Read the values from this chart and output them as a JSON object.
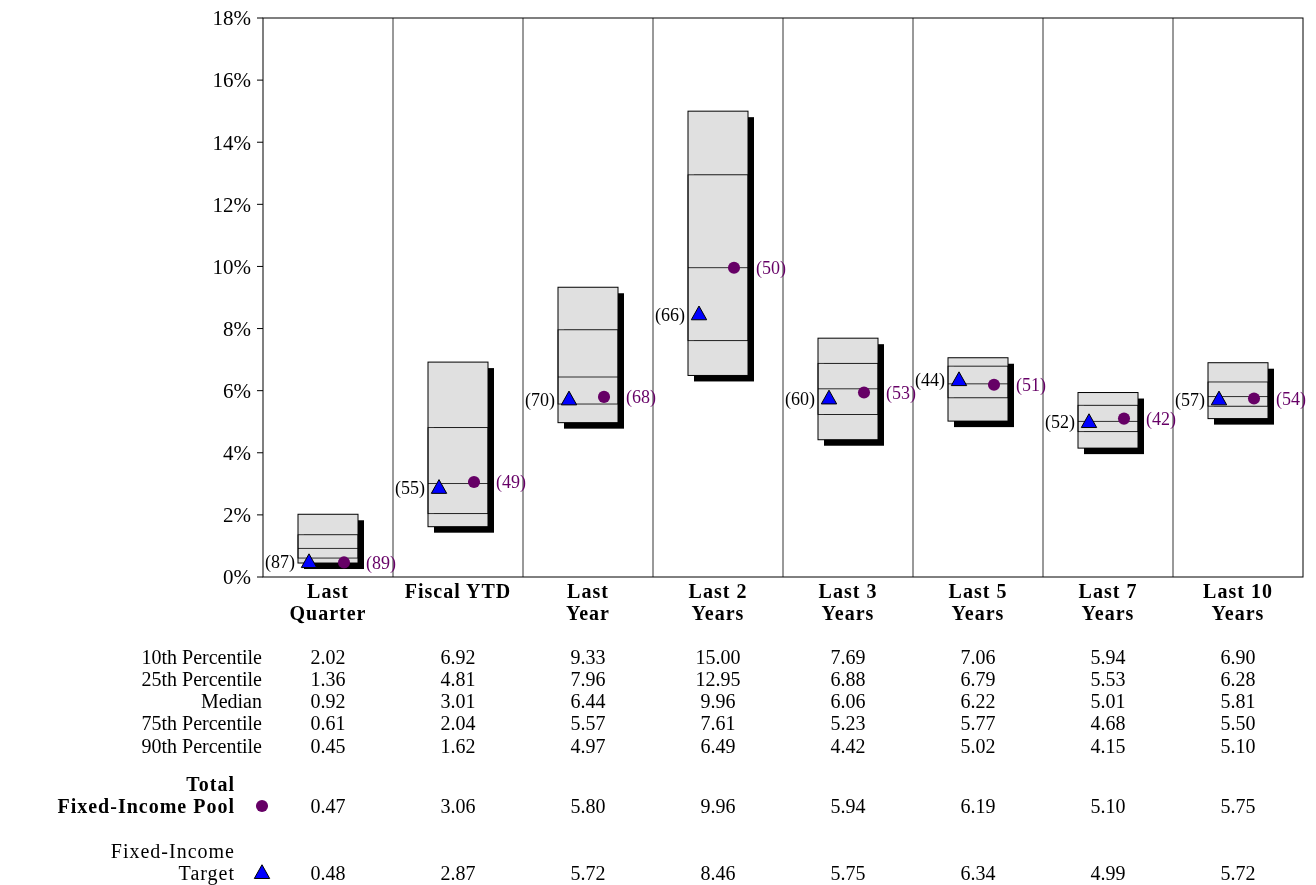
{
  "chart_data": {
    "type": "box",
    "categories": [
      "Last\nQuarter",
      "Fiscal YTD",
      "Last\nYear",
      "Last 2\nYears",
      "Last 3\nYears",
      "Last 5\nYears",
      "Last 7\nYears",
      "Last 10\nYears"
    ],
    "boxes": [
      {
        "low": 0.45,
        "q1": 0.61,
        "median": 0.92,
        "q3": 1.36,
        "high": 2.02
      },
      {
        "low": 1.62,
        "q1": 2.04,
        "median": 3.01,
        "q3": 4.81,
        "high": 6.92
      },
      {
        "low": 4.97,
        "q1": 5.57,
        "median": 6.44,
        "q3": 7.96,
        "high": 9.33
      },
      {
        "low": 6.49,
        "q1": 7.61,
        "median": 9.96,
        "q3": 12.95,
        "high": 15.0
      },
      {
        "low": 4.42,
        "q1": 5.23,
        "median": 6.06,
        "q3": 6.88,
        "high": 7.69
      },
      {
        "low": 5.02,
        "q1": 5.77,
        "median": 6.22,
        "q3": 6.79,
        "high": 7.06
      },
      {
        "low": 4.15,
        "q1": 4.68,
        "median": 5.01,
        "q3": 5.53,
        "high": 5.94
      },
      {
        "low": 5.1,
        "q1": 5.5,
        "median": 5.81,
        "q3": 6.28,
        "high": 6.9
      }
    ],
    "color": "#e0e0e0",
    "series": [
      {
        "type": "scatter",
        "name": "Total\nFixed-Income Pool",
        "color": "#660066",
        "marker": "circle",
        "values": [
          0.47,
          3.06,
          5.8,
          9.96,
          5.94,
          6.19,
          5.1,
          5.75
        ],
        "value_labels": [
          "0.47",
          "3.06",
          "5.80",
          "9.96",
          "5.94",
          "6.19",
          "5.10",
          "5.75"
        ]
      },
      {
        "type": "scatter",
        "name": "Fixed-Income\nTarget",
        "color": "#0000ff",
        "marker": "triangle",
        "values": [
          0.48,
          2.87,
          5.72,
          8.46,
          5.75,
          6.34,
          4.99,
          5.72
        ],
        "value_labels": [
          "0.48",
          "2.87",
          "5.72",
          "8.46",
          "5.75",
          "6.34",
          "4.99",
          "5.72"
        ]
      }
    ],
    "annotations": [
      "10th Percentile",
      "25th Percentile",
      "Median",
      "75th Percentile",
      "90th Percentile",
      "(89)",
      "(49)",
      "(68)",
      "(50)",
      "(53)",
      "(51)",
      "(42)",
      "(54)",
      "(87)",
      "(55)",
      "(70)",
      "(66)",
      "(60)",
      "(44)",
      "(52)",
      "(57)",
      "2.02",
      "1.36",
      "0.92",
      "0.61",
      "0.45",
      "6.92",
      "4.81",
      "3.01",
      "2.04",
      "1.62",
      "9.33",
      "7.96",
      "6.44",
      "5.57",
      "4.97",
      "15.00",
      "12.95",
      "9.96",
      "7.61",
      "6.49",
      "7.69",
      "6.88",
      "6.06",
      "5.23",
      "4.42",
      "7.06",
      "6.79",
      "6.22",
      "5.77",
      "5.02",
      "5.94",
      "5.53",
      "5.01",
      "4.68",
      "4.15",
      "6.90",
      "6.28",
      "5.81",
      "5.50",
      "5.10"
    ],
    "ylim": [
      0,
      18
    ],
    "yticks": [
      {
        "value": 0,
        "label": "0%"
      },
      {
        "value": 2,
        "label": "2%"
      },
      {
        "value": 4,
        "label": "4%"
      },
      {
        "value": 6,
        "label": "6%"
      },
      {
        "value": 8,
        "label": "8%"
      },
      {
        "value": 10,
        "label": "10%"
      },
      {
        "value": 12,
        "label": "12%"
      },
      {
        "value": 14,
        "label": "14%"
      },
      {
        "value": 16,
        "label": "16%"
      },
      {
        "value": 18,
        "label": "18%"
      }
    ],
    "legend": "bottom left"
  }
}
